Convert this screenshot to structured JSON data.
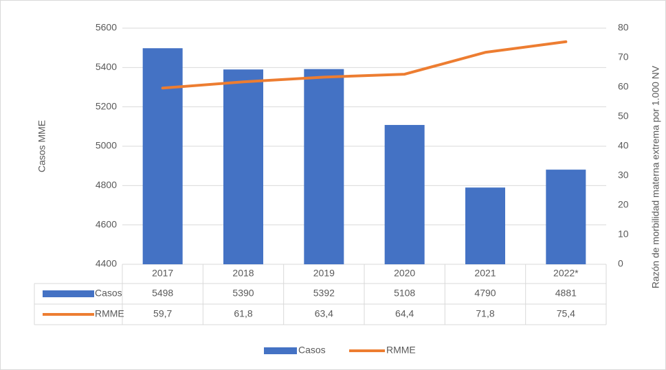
{
  "chart_data": {
    "type": "bar_line",
    "categories": [
      "2017",
      "2018",
      "2019",
      "2020",
      "2021",
      "2022*"
    ],
    "series": [
      {
        "name": "Casos",
        "color": "#4472c4",
        "values": [
          5498,
          5390,
          5392,
          5108,
          4790,
          4881
        ]
      },
      {
        "name": "RMME",
        "color": "#ed7d31",
        "axis": "y2",
        "values": [
          59.7,
          61.8,
          63.4,
          64.4,
          71.8,
          75.4
        ],
        "value_labels": [
          "59,7",
          "61,8",
          "63,4",
          "64,4",
          "71,8",
          "75,4"
        ]
      }
    ],
    "ylabel": "Casos MME",
    "y2label": "Razón de morbilidad materna extrema  por 1.000 NV",
    "ylim": [
      4400,
      5600
    ],
    "yticks": [
      4400,
      4600,
      4800,
      5000,
      5200,
      5400,
      5600
    ],
    "y2lim": [
      0,
      80
    ],
    "y2ticks": [
      0,
      10,
      20,
      30,
      40,
      50,
      60,
      70,
      80
    ],
    "grid": true,
    "legend": "bottom"
  }
}
